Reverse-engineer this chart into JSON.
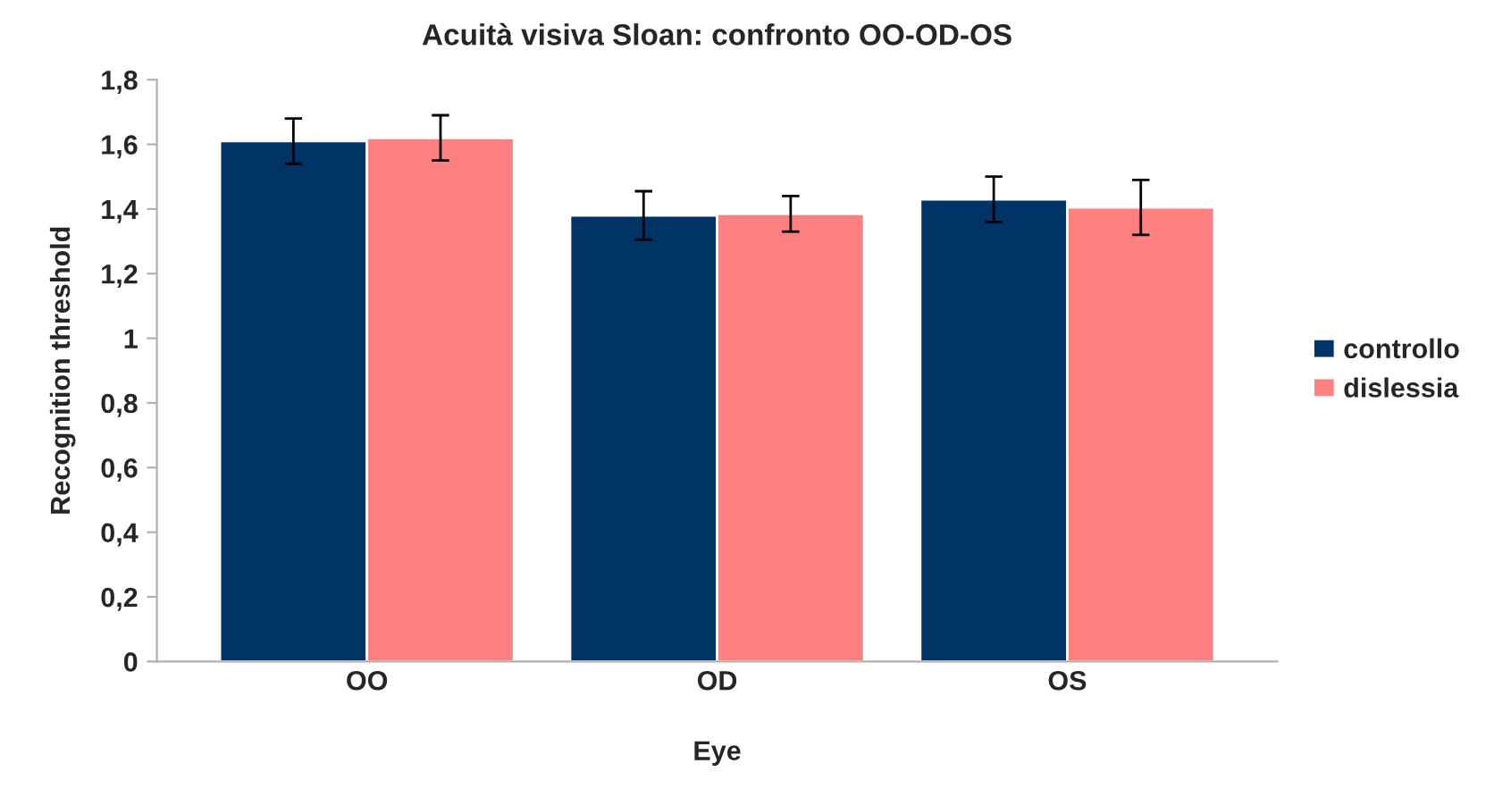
{
  "chart_data": {
    "type": "bar",
    "title": "Acuità visiva Sloan: confronto OO-OD-OS",
    "xlabel": "Eye",
    "ylabel": "Recognition threshold",
    "categories": [
      "OO",
      "OD",
      "OS"
    ],
    "series": [
      {
        "name": "controllo",
        "color": "#003366",
        "values": [
          1.61,
          1.38,
          1.43
        ],
        "errors": [
          0.07,
          0.075,
          0.07
        ]
      },
      {
        "name": "dislessia",
        "color": "#ff8080",
        "values": [
          1.62,
          1.385,
          1.405
        ],
        "errors": [
          0.07,
          0.055,
          0.085
        ]
      }
    ],
    "ylim": [
      0,
      1.8
    ],
    "yticks": [
      {
        "value": 0,
        "label": "0"
      },
      {
        "value": 0.2,
        "label": "0,2"
      },
      {
        "value": 0.4,
        "label": "0,4"
      },
      {
        "value": 0.6,
        "label": "0,6"
      },
      {
        "value": 0.8,
        "label": "0,8"
      },
      {
        "value": 1,
        "label": "1"
      },
      {
        "value": 1.2,
        "label": "1,2"
      },
      {
        "value": 1.4,
        "label": "1,4"
      },
      {
        "value": 1.6,
        "label": "1,6"
      },
      {
        "value": 1.8,
        "label": "1,8"
      }
    ],
    "grid": false,
    "legend": "right"
  }
}
